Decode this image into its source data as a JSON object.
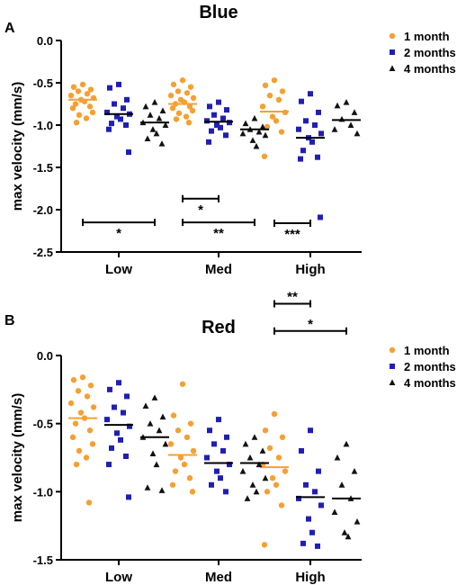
{
  "colors": {
    "series": [
      "#f5a033",
      "#1f1fb4",
      "#111111"
    ],
    "axis": "#000000",
    "mean_orange": "#f5a033"
  },
  "chart_data": [
    {
      "panel_letter": "A",
      "type": "scatter",
      "title": "Blue",
      "ylabel": "max velocity (mm/s)",
      "xlabel": "",
      "categories": [
        "Low",
        "Med",
        "High"
      ],
      "ylim": [
        -2.5,
        0.0
      ],
      "yticks": [
        "0.0",
        "-0.5",
        "-1.0",
        "-1.5",
        "-2.0",
        "-2.5"
      ],
      "yticks_values": [
        0.0,
        -0.5,
        -1.0,
        -1.5,
        -2.0,
        -2.5
      ],
      "grid": false,
      "legend_position": "top-right",
      "series": [
        {
          "name": "1 month",
          "marker": "circle",
          "means": [
            -0.7,
            -0.75,
            -0.84
          ],
          "values": [
            [
              -0.52,
              -0.55,
              -0.58,
              -0.6,
              -0.63,
              -0.65,
              -0.68,
              -0.7,
              -0.72,
              -0.75,
              -0.78,
              -0.8,
              -0.85,
              -0.88,
              -0.92,
              -0.97
            ],
            [
              -0.47,
              -0.52,
              -0.55,
              -0.6,
              -0.62,
              -0.65,
              -0.68,
              -0.7,
              -0.73,
              -0.75,
              -0.78,
              -0.8,
              -0.83,
              -0.86,
              -0.9,
              -0.93,
              -0.97
            ],
            [
              -0.47,
              -0.53,
              -0.6,
              -0.65,
              -0.7,
              -0.78,
              -0.85,
              -0.9,
              -0.95,
              -1.02,
              -1.08,
              -1.37
            ]
          ]
        },
        {
          "name": "2 months",
          "marker": "square",
          "means": [
            -0.87,
            -0.96,
            -1.15
          ],
          "values": [
            [
              -0.52,
              -0.56,
              -0.7,
              -0.75,
              -0.8,
              -0.85,
              -0.87,
              -0.9,
              -0.93,
              -0.98,
              -1.0,
              -1.05,
              -1.32
            ],
            [
              -0.73,
              -0.78,
              -0.82,
              -0.88,
              -0.92,
              -0.95,
              -0.97,
              -1.0,
              -1.03,
              -1.07,
              -1.12,
              -1.2
            ],
            [
              -0.63,
              -0.72,
              -0.85,
              -0.95,
              -1.0,
              -1.05,
              -1.1,
              -1.15,
              -1.2,
              -1.3,
              -1.38,
              -1.4,
              -2.09
            ]
          ]
        },
        {
          "name": "4 months",
          "marker": "triangle",
          "means": [
            -0.97,
            -1.05,
            -0.94
          ],
          "values": [
            [
              -0.73,
              -0.78,
              -0.83,
              -0.88,
              -0.92,
              -0.97,
              -1.0,
              -1.05,
              -1.1,
              -1.16,
              -1.22
            ],
            [
              -0.92,
              -0.98,
              -1.02,
              -1.05,
              -1.08,
              -1.1,
              -1.12,
              -1.18,
              -1.25
            ],
            [
              -0.73,
              -0.77,
              -0.85,
              -0.93,
              -1.0,
              -1.05,
              -1.1
            ]
          ]
        }
      ],
      "annotations": [
        {
          "text": "*",
          "group": "Low",
          "y": -2.15,
          "from": "1 month",
          "to": "4 months"
        },
        {
          "text": "*",
          "group": "Med",
          "y": -1.87,
          "from": "1 month",
          "to": "2 months"
        },
        {
          "text": "**",
          "group": "Med",
          "y": -2.15,
          "from": "1 month",
          "to": "4 months"
        },
        {
          "text": "***",
          "group": "High",
          "y": -2.16,
          "from": "1 month",
          "to": "2 months"
        }
      ]
    },
    {
      "panel_letter": "B",
      "type": "scatter",
      "title": "Red",
      "ylabel": "max velocity (mm/s)",
      "xlabel": "",
      "categories": [
        "Low",
        "Med",
        "High"
      ],
      "ylim": [
        -1.5,
        0.0
      ],
      "yticks": [
        "0.0",
        "-0.5",
        "-1.0",
        "-1.5"
      ],
      "yticks_values": [
        0.0,
        -0.5,
        -1.0,
        -1.5
      ],
      "grid": false,
      "legend_position": "top-right",
      "series": [
        {
          "name": "1 month",
          "marker": "circle",
          "means": [
            -0.46,
            -0.73,
            -0.82
          ],
          "values": [
            [
              -0.16,
              -0.18,
              -0.22,
              -0.26,
              -0.3,
              -0.35,
              -0.38,
              -0.42,
              -0.46,
              -0.5,
              -0.55,
              -0.6,
              -0.65,
              -0.7,
              -0.75,
              -0.8,
              -1.08
            ],
            [
              -0.21,
              -0.44,
              -0.5,
              -0.55,
              -0.6,
              -0.65,
              -0.7,
              -0.75,
              -0.8,
              -0.85,
              -0.9,
              -0.95,
              -1.0
            ],
            [
              -0.43,
              -0.55,
              -0.6,
              -0.68,
              -0.75,
              -0.8,
              -0.85,
              -0.9,
              -0.95,
              -1.0,
              -1.1,
              -1.39
            ]
          ]
        },
        {
          "name": "2 months",
          "marker": "square",
          "means": [
            -0.51,
            -0.79,
            -1.04
          ],
          "values": [
            [
              -0.2,
              -0.25,
              -0.3,
              -0.38,
              -0.42,
              -0.47,
              -0.52,
              -0.57,
              -0.62,
              -0.68,
              -0.74,
              -0.8,
              -1.04
            ],
            [
              -0.47,
              -0.55,
              -0.6,
              -0.65,
              -0.7,
              -0.75,
              -0.8,
              -0.85,
              -0.9,
              -0.95,
              -1.0
            ],
            [
              -0.55,
              -0.7,
              -0.85,
              -0.95,
              -1.0,
              -1.05,
              -1.1,
              -1.2,
              -1.3,
              -1.38,
              -1.4
            ]
          ]
        },
        {
          "name": "4 months",
          "marker": "triangle",
          "means": [
            -0.6,
            -0.79,
            -1.05
          ],
          "values": [
            [
              -0.31,
              -0.37,
              -0.45,
              -0.5,
              -0.55,
              -0.6,
              -0.65,
              -0.72,
              -0.8,
              -0.97,
              -0.99
            ],
            [
              -0.6,
              -0.65,
              -0.7,
              -0.75,
              -0.8,
              -0.85,
              -0.9,
              -0.95,
              -1.0,
              -1.05
            ],
            [
              -0.65,
              -0.75,
              -0.85,
              -0.95,
              -1.05,
              -1.15,
              -1.22,
              -1.3,
              -1.33
            ]
          ]
        }
      ],
      "annotations": [
        {
          "text": "*",
          "group": "High",
          "y": 0.18,
          "from": "1 month",
          "to": "4 months"
        },
        {
          "text": "**",
          "group": "High",
          "y": 0.38,
          "from": "1 month",
          "to": "2 months"
        }
      ]
    }
  ]
}
